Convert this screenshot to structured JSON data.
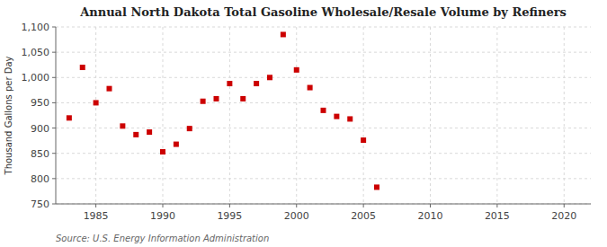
{
  "chart_data": {
    "type": "scatter",
    "title": "Annual North Dakota Total Gasoline Wholesale/Resale Volume by Refiners",
    "y_label": "Thousand Gallons per Day",
    "source": "Source: U.S. Energy Information Administration",
    "x": [
      1983,
      1984,
      1985,
      1986,
      1987,
      1988,
      1989,
      1990,
      1991,
      1992,
      1993,
      1994,
      1995,
      1996,
      1997,
      1998,
      1999,
      2000,
      2001,
      2002,
      2003,
      2004,
      2005,
      2006
    ],
    "values": [
      920,
      1020,
      950,
      978,
      904,
      887,
      892,
      853,
      868,
      899,
      953,
      958,
      988,
      958,
      988,
      1000,
      1085,
      1015,
      980,
      935,
      923,
      918,
      876,
      783
    ],
    "color": "#cc0000",
    "marker": "square",
    "xlim": [
      1982,
      2022
    ],
    "ylim": [
      750,
      1100
    ],
    "xticks": [
      1985,
      1990,
      1995,
      2000,
      2005,
      2010,
      2015,
      2020
    ],
    "yticks": [
      750,
      800,
      850,
      900,
      950,
      {
        "value": 1000,
        "label": "1,000"
      },
      {
        "value": 1050,
        "label": "1,050"
      },
      {
        "value": 1100,
        "label": "1,100"
      }
    ],
    "grid": true
  }
}
